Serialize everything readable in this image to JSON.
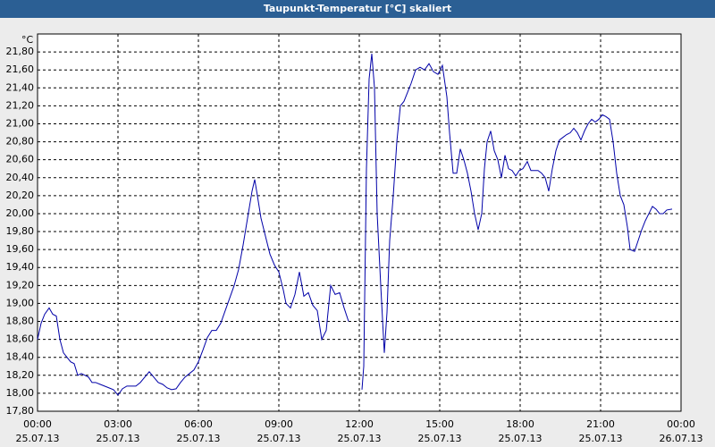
{
  "chart_data": {
    "type": "line",
    "title": "Taupunkt-Temperatur [°C] skaliert",
    "y_unit": "°C",
    "x": [
      0,
      8,
      16,
      26,
      34,
      42,
      50,
      58,
      66,
      74,
      82,
      90,
      98,
      106,
      114,
      122,
      130,
      140,
      150,
      160,
      170,
      180,
      190,
      200,
      210,
      220,
      230,
      240,
      250,
      260,
      270,
      280,
      290,
      300,
      310,
      320,
      330,
      340,
      350,
      360,
      370,
      380,
      390,
      400,
      410,
      420,
      430,
      440,
      450,
      460,
      470,
      480,
      486,
      492,
      500,
      510,
      520,
      530,
      540,
      550,
      556,
      566,
      576,
      586,
      596,
      606,
      616,
      626,
      636,
      646,
      656,
      666,
      676,
      686,
      696,
      710,
      726,
      730,
      736,
      742,
      748,
      754,
      760,
      768,
      776,
      782,
      788,
      796,
      804,
      812,
      820,
      828,
      836,
      846,
      856,
      866,
      876,
      886,
      896,
      906,
      916,
      922,
      930,
      938,
      946,
      954,
      962,
      970,
      978,
      986,
      994,
      1000,
      1006,
      1014,
      1022,
      1030,
      1038,
      1046,
      1054,
      1062,
      1070,
      1078,
      1086,
      1096,
      1104,
      1112,
      1120,
      1128,
      1136,
      1144,
      1152,
      1160,
      1168,
      1176,
      1184,
      1192,
      1200,
      1208,
      1216,
      1224,
      1232,
      1240,
      1248,
      1256,
      1264,
      1272,
      1280,
      1288,
      1296,
      1304,
      1312,
      1320,
      1326,
      1336,
      1344,
      1352,
      1360,
      1368,
      1376,
      1384,
      1392,
      1400,
      1408,
      1420
    ],
    "series": [
      {
        "color": "#0000a8",
        "values": [
          18.6,
          18.78,
          18.88,
          18.95,
          18.88,
          18.86,
          18.6,
          18.45,
          18.4,
          18.35,
          18.33,
          18.2,
          18.22,
          18.2,
          18.18,
          18.12,
          18.12,
          18.1,
          18.08,
          18.06,
          18.04,
          17.98,
          18.05,
          18.08,
          18.08,
          18.08,
          18.12,
          18.18,
          18.24,
          18.18,
          18.12,
          18.1,
          18.06,
          18.04,
          18.05,
          18.12,
          18.18,
          18.22,
          18.26,
          18.35,
          18.48,
          18.62,
          18.7,
          18.7,
          18.78,
          18.92,
          19.06,
          19.2,
          19.38,
          19.65,
          19.95,
          20.25,
          20.38,
          20.2,
          19.95,
          19.75,
          19.55,
          19.43,
          19.35,
          19.15,
          19.0,
          18.95,
          19.1,
          19.35,
          19.08,
          19.12,
          18.98,
          18.92,
          18.6,
          18.7,
          19.2,
          19.1,
          19.12,
          18.95,
          18.8,
          null,
          18.04,
          18.3,
          20.5,
          21.5,
          21.78,
          21.4,
          20.0,
          19.2,
          18.45,
          18.9,
          19.7,
          20.2,
          20.8,
          21.2,
          21.25,
          21.35,
          21.45,
          21.6,
          21.63,
          21.6,
          21.67,
          21.58,
          21.55,
          21.65,
          21.3,
          20.9,
          20.45,
          20.45,
          20.72,
          20.6,
          20.45,
          20.25,
          20.0,
          19.82,
          20.0,
          20.5,
          20.8,
          20.92,
          20.7,
          20.6,
          20.4,
          20.65,
          20.5,
          20.48,
          20.42,
          20.48,
          20.5,
          20.58,
          20.48,
          20.48,
          20.48,
          20.45,
          20.4,
          20.25,
          20.5,
          20.7,
          20.82,
          20.85,
          20.88,
          20.9,
          20.95,
          20.9,
          20.82,
          20.92,
          21.0,
          21.05,
          21.02,
          21.05,
          21.1,
          21.08,
          21.05,
          20.8,
          20.45,
          20.2,
          20.1,
          19.85,
          19.6,
          19.58,
          19.7,
          19.82,
          19.92,
          20.0,
          20.08,
          20.05,
          20.0,
          20.0,
          20.04,
          20.05
        ]
      }
    ],
    "xlim": [
      0,
      1440
    ],
    "xticks": [
      {
        "value": 0,
        "label": "00:00"
      },
      {
        "value": 180,
        "label": "03:00"
      },
      {
        "value": 360,
        "label": "06:00"
      },
      {
        "value": 540,
        "label": "09:00"
      },
      {
        "value": 720,
        "label": "12:00"
      },
      {
        "value": 900,
        "label": "15:00"
      },
      {
        "value": 1080,
        "label": "18:00"
      },
      {
        "value": 1260,
        "label": "21:00"
      },
      {
        "value": 1440,
        "label": "00:00"
      }
    ],
    "xtick_dates": [
      "25.07.13",
      "25.07.13",
      "25.07.13",
      "25.07.13",
      "25.07.13",
      "25.07.13",
      "25.07.13",
      "25.07.13",
      "26.07.13"
    ],
    "ylim": [
      17.8,
      22.0
    ],
    "yticks": [
      {
        "value": 17.8,
        "label": "17,80"
      },
      {
        "value": 18.0,
        "label": "18,00"
      },
      {
        "value": 18.2,
        "label": "18,20"
      },
      {
        "value": 18.4,
        "label": "18,40"
      },
      {
        "value": 18.6,
        "label": "18,60"
      },
      {
        "value": 18.8,
        "label": "18,80"
      },
      {
        "value": 19.0,
        "label": "19,00"
      },
      {
        "value": 19.2,
        "label": "19,20"
      },
      {
        "value": 19.4,
        "label": "19,40"
      },
      {
        "value": 19.6,
        "label": "19,60"
      },
      {
        "value": 19.8,
        "label": "19,80"
      },
      {
        "value": 20.0,
        "label": "20,00"
      },
      {
        "value": 20.2,
        "label": "20,20"
      },
      {
        "value": 20.4,
        "label": "20,40"
      },
      {
        "value": 20.6,
        "label": "20,60"
      },
      {
        "value": 20.8,
        "label": "20,80"
      },
      {
        "value": 21.0,
        "label": "21,00"
      },
      {
        "value": 21.2,
        "label": "21,20"
      },
      {
        "value": 21.4,
        "label": "21,40"
      },
      {
        "value": 21.6,
        "label": "21,60"
      },
      {
        "value": 21.8,
        "label": "21,80"
      }
    ],
    "grid": true
  }
}
